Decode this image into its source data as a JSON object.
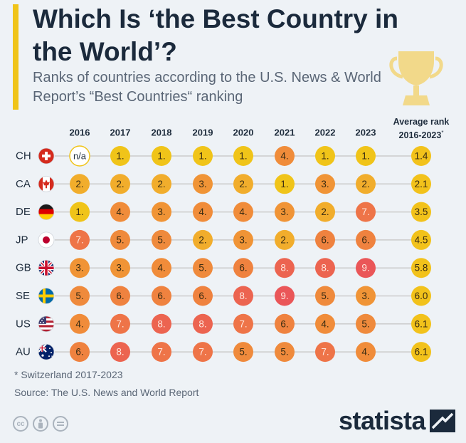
{
  "title": "Which Is ‘the Best Country in the World’?",
  "subtitle": "Ranks of countries according to the U.S. News & World Report’s “Best Countries“ ranking",
  "avg_header": {
    "line1": "Average rank",
    "line2": "2016-2023",
    "mark": "*"
  },
  "footnote": "* Switzerland 2017-2023",
  "source": "Source: The U.S. News and World Report",
  "logo": "statista",
  "license_icons": [
    "cc-icon",
    "by-icon",
    "nd-icon"
  ],
  "colors": {
    "rank_1": "#f0c419",
    "rank_2": "#f1ad2c",
    "rank_3": "#f09436",
    "rank_4": "#f08c3a",
    "rank_5": "#ef8a3c",
    "rank_6": "#ef823f",
    "rank_7": "#ee7448",
    "rank_8": "#ec6450",
    "rank_9": "#ea5658",
    "avg": "#f2c21b",
    "line": "#cbcbcb",
    "accent": "#f0c419",
    "text": "#1f2d3d"
  },
  "chart_data": {
    "type": "table",
    "title": "Which Is ‘the Best Country in the World’?",
    "columns": [
      "2016",
      "2017",
      "2018",
      "2019",
      "2020",
      "2021",
      "2022",
      "2023"
    ],
    "rows": [
      {
        "country": "CH",
        "flag": "switzerland-flag-icon",
        "ranks": [
          "n/a",
          "1.",
          "1.",
          "1.",
          "1.",
          "4.",
          "1.",
          "1."
        ],
        "avg": "1.4"
      },
      {
        "country": "CA",
        "flag": "canada-flag-icon",
        "ranks": [
          "2.",
          "2.",
          "2.",
          "3.",
          "2.",
          "1.",
          "3.",
          "2."
        ],
        "avg": "2.1"
      },
      {
        "country": "DE",
        "flag": "germany-flag-icon",
        "ranks": [
          "1.",
          "4.",
          "3.",
          "4.",
          "4.",
          "3.",
          "2.",
          "7."
        ],
        "avg": "3.5"
      },
      {
        "country": "JP",
        "flag": "japan-flag-icon",
        "ranks": [
          "7.",
          "5.",
          "5.",
          "2.",
          "3.",
          "2.",
          "6.",
          "6."
        ],
        "avg": "4.5"
      },
      {
        "country": "GB",
        "flag": "uk-flag-icon",
        "ranks": [
          "3.",
          "3.",
          "4.",
          "5.",
          "6.",
          "8.",
          "8.",
          "9."
        ],
        "avg": "5.8"
      },
      {
        "country": "SE",
        "flag": "sweden-flag-icon",
        "ranks": [
          "5.",
          "6.",
          "6.",
          "6.",
          "8.",
          "9.",
          "5.",
          "3."
        ],
        "avg": "6.0"
      },
      {
        "country": "US",
        "flag": "usa-flag-icon",
        "ranks": [
          "4.",
          "7.",
          "8.",
          "8.",
          "7.",
          "6.",
          "4.",
          "5."
        ],
        "avg": "6.1"
      },
      {
        "country": "AU",
        "flag": "australia-flag-icon",
        "ranks": [
          "6.",
          "8.",
          "7.",
          "7.",
          "5.",
          "5.",
          "7.",
          "4."
        ],
        "avg": "6.1"
      }
    ]
  }
}
